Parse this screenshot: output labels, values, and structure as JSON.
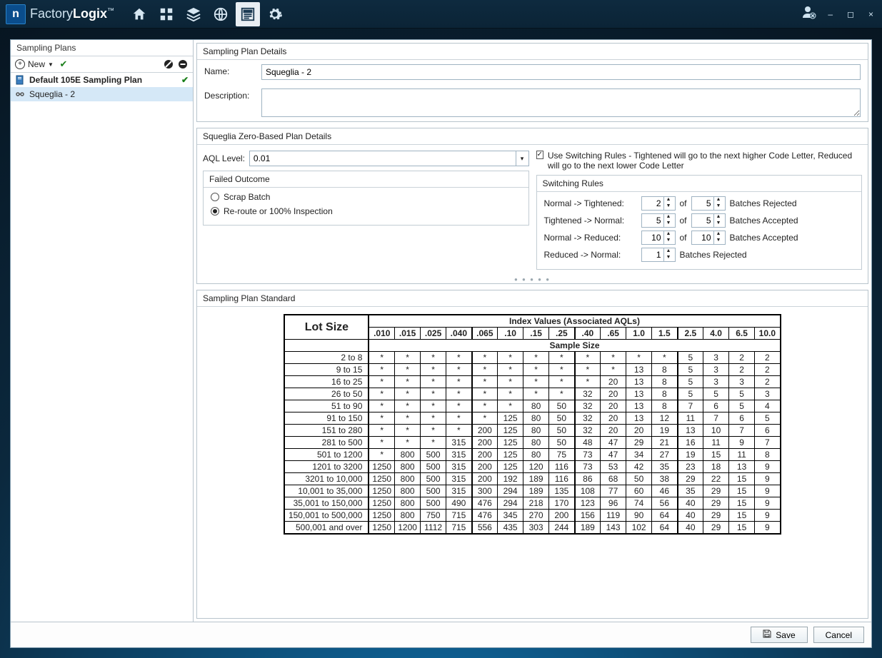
{
  "brand": {
    "part1": "Factory",
    "part2": "Logix"
  },
  "titlebar_icons": [
    "home",
    "grid",
    "stack",
    "globe",
    "page",
    "gear"
  ],
  "active_tb_index": 4,
  "window_controls": {
    "min": "–",
    "max": "◻",
    "close": "×"
  },
  "sidebar": {
    "title": "Sampling Plans",
    "new_label": "New",
    "plans": [
      {
        "icon": "doc",
        "name": "Default 105E Sampling Plan",
        "bold": true,
        "checked": true,
        "selected": false
      },
      {
        "icon": "link",
        "name": "Squeglia - 2",
        "bold": false,
        "checked": false,
        "selected": true
      }
    ]
  },
  "details": {
    "title": "Sampling Plan Details",
    "name_label": "Name:",
    "name_value": "Squeglia - 2",
    "desc_label": "Description:",
    "desc_value": ""
  },
  "zero": {
    "title": "Squeglia Zero-Based Plan Details",
    "aql_label": "AQL Level:",
    "aql_value": "0.01",
    "failed_title": "Failed Outcome",
    "opt_scrap": "Scrap Batch",
    "opt_reroute": "Re-route or 100% Inspection",
    "selected_opt": "reroute",
    "use_sr_label": "Use Switching Rules",
    "use_sr_checked": true,
    "use_sr_help": " - Tightened will go to the next higher Code Letter, Reduced will go to the next lower Code Letter",
    "sr_title": "Switching Rules",
    "rules": [
      {
        "label": "Normal -> Tightened:",
        "a": "2",
        "b": "5",
        "tail": "Batches Rejected",
        "b_show": true
      },
      {
        "label": "Tightened -> Normal:",
        "a": "5",
        "b": "5",
        "tail": "Batches Accepted",
        "b_show": true
      },
      {
        "label": "Normal -> Reduced:",
        "a": "10",
        "b": "10",
        "tail": "Batches Accepted",
        "b_show": true
      },
      {
        "label": "Reduced -> Normal:",
        "a": "1",
        "b": "",
        "tail": "Batches Rejected",
        "b_show": false
      }
    ],
    "of_label": "of"
  },
  "standard": {
    "title": "Sampling Plan Standard",
    "lot_head": "Lot Size",
    "index_head": "Index Values (Associated AQLs)",
    "sample_head": "Sample Size",
    "aqls": [
      ".010",
      ".015",
      ".025",
      ".040",
      ".065",
      ".10",
      ".15",
      ".25",
      ".40",
      ".65",
      "1.0",
      "1.5",
      "2.5",
      "4.0",
      "6.5",
      "10.0"
    ],
    "group_breaks": [
      4,
      8,
      12,
      16
    ],
    "rows": [
      {
        "lot": "2 to 8",
        "v": [
          "*",
          "*",
          "*",
          "*",
          "*",
          "*",
          "*",
          "*",
          "*",
          "*",
          "*",
          "*",
          "5",
          "3",
          "2",
          "2"
        ]
      },
      {
        "lot": "9 to 15",
        "v": [
          "*",
          "*",
          "*",
          "*",
          "*",
          "*",
          "*",
          "*",
          "*",
          "*",
          "13",
          "8",
          "5",
          "3",
          "2",
          "2"
        ]
      },
      {
        "lot": "16 to 25",
        "v": [
          "*",
          "*",
          "*",
          "*",
          "*",
          "*",
          "*",
          "*",
          "*",
          "20",
          "13",
          "8",
          "5",
          "3",
          "3",
          "2"
        ]
      },
      {
        "lot": "26 to 50",
        "v": [
          "*",
          "*",
          "*",
          "*",
          "*",
          "*",
          "*",
          "*",
          "32",
          "20",
          "13",
          "8",
          "5",
          "5",
          "5",
          "3"
        ]
      },
      {
        "lot": "51 to 90",
        "v": [
          "*",
          "*",
          "*",
          "*",
          "*",
          "*",
          "80",
          "50",
          "32",
          "20",
          "13",
          "8",
          "7",
          "6",
          "5",
          "4"
        ]
      },
      {
        "lot": "91 to 150",
        "v": [
          "*",
          "*",
          "*",
          "*",
          "*",
          "125",
          "80",
          "50",
          "32",
          "20",
          "13",
          "12",
          "11",
          "7",
          "6",
          "5"
        ]
      },
      {
        "lot": "151 to 280",
        "v": [
          "*",
          "*",
          "*",
          "*",
          "200",
          "125",
          "80",
          "50",
          "32",
          "20",
          "20",
          "19",
          "13",
          "10",
          "7",
          "6"
        ]
      },
      {
        "lot": "281 to 500",
        "v": [
          "*",
          "*",
          "*",
          "315",
          "200",
          "125",
          "80",
          "50",
          "48",
          "47",
          "29",
          "21",
          "16",
          "11",
          "9",
          "7"
        ]
      },
      {
        "lot": "501 to 1200",
        "v": [
          "*",
          "800",
          "500",
          "315",
          "200",
          "125",
          "80",
          "75",
          "73",
          "47",
          "34",
          "27",
          "19",
          "15",
          "11",
          "8"
        ]
      },
      {
        "lot": "1201 to 3200",
        "v": [
          "1250",
          "800",
          "500",
          "315",
          "200",
          "125",
          "120",
          "116",
          "73",
          "53",
          "42",
          "35",
          "23",
          "18",
          "13",
          "9"
        ]
      },
      {
        "lot": "3201 to 10,000",
        "v": [
          "1250",
          "800",
          "500",
          "315",
          "200",
          "192",
          "189",
          "116",
          "86",
          "68",
          "50",
          "38",
          "29",
          "22",
          "15",
          "9"
        ]
      },
      {
        "lot": "10,001 to 35,000",
        "v": [
          "1250",
          "800",
          "500",
          "315",
          "300",
          "294",
          "189",
          "135",
          "108",
          "77",
          "60",
          "46",
          "35",
          "29",
          "15",
          "9"
        ]
      },
      {
        "lot": "35,001 to 150,000",
        "v": [
          "1250",
          "800",
          "500",
          "490",
          "476",
          "294",
          "218",
          "170",
          "123",
          "96",
          "74",
          "56",
          "40",
          "29",
          "15",
          "9"
        ]
      },
      {
        "lot": "150,001 to 500,000",
        "v": [
          "1250",
          "800",
          "750",
          "715",
          "476",
          "345",
          "270",
          "200",
          "156",
          "119",
          "90",
          "64",
          "40",
          "29",
          "15",
          "9"
        ]
      },
      {
        "lot": "500,001 and over",
        "v": [
          "1250",
          "1200",
          "1112",
          "715",
          "556",
          "435",
          "303",
          "244",
          "189",
          "143",
          "102",
          "64",
          "40",
          "29",
          "15",
          "9"
        ]
      }
    ]
  },
  "footer": {
    "save": "Save",
    "cancel": "Cancel"
  }
}
